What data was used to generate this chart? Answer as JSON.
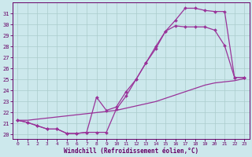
{
  "line1_x": [
    0,
    1,
    2,
    3,
    4,
    5,
    6,
    7,
    8,
    9,
    10,
    11,
    12,
    13,
    14,
    15,
    16,
    17,
    18,
    19,
    20,
    21,
    22,
    23
  ],
  "line1_y": [
    21.3,
    21.1,
    20.8,
    20.5,
    20.5,
    20.1,
    20.1,
    20.2,
    20.2,
    20.2,
    22.3,
    23.5,
    25.0,
    26.5,
    28.0,
    29.4,
    30.4,
    31.5,
    31.5,
    31.3,
    31.2,
    31.2,
    25.2,
    25.2
  ],
  "line2_x": [
    0,
    1,
    2,
    3,
    4,
    5,
    6,
    7,
    8,
    9,
    10,
    11,
    12,
    13,
    14,
    15,
    16,
    17,
    18,
    19,
    20,
    21,
    22,
    23
  ],
  "line2_y": [
    21.3,
    21.1,
    20.8,
    20.5,
    20.5,
    20.1,
    20.1,
    20.2,
    23.4,
    22.2,
    22.5,
    23.9,
    25.0,
    26.5,
    27.8,
    29.4,
    29.9,
    29.8,
    29.8,
    29.8,
    29.5,
    28.1,
    25.2,
    25.2
  ],
  "line3_x": [
    0,
    1,
    2,
    3,
    4,
    5,
    6,
    7,
    8,
    9,
    10,
    11,
    12,
    13,
    14,
    15,
    16,
    17,
    18,
    19,
    20,
    21,
    22,
    23
  ],
  "line3_y": [
    21.3,
    21.3,
    21.4,
    21.5,
    21.6,
    21.7,
    21.8,
    21.9,
    22.0,
    22.1,
    22.2,
    22.4,
    22.6,
    22.8,
    23.0,
    23.3,
    23.6,
    23.9,
    24.2,
    24.5,
    24.7,
    24.8,
    24.9,
    25.1
  ],
  "color": "#993399",
  "bg_color": "#cce8ec",
  "grid_color": "#aacccc",
  "xlabel": "Windchill (Refroidissement éolien,°C)",
  "xlim": [
    -0.5,
    23.5
  ],
  "ylim": [
    19.6,
    32.0
  ],
  "yticks": [
    20,
    21,
    22,
    23,
    24,
    25,
    26,
    27,
    28,
    29,
    30,
    31
  ],
  "xticks": [
    0,
    1,
    2,
    3,
    4,
    5,
    6,
    7,
    8,
    9,
    10,
    11,
    12,
    13,
    14,
    15,
    16,
    17,
    18,
    19,
    20,
    21,
    22,
    23
  ],
  "marker": "D",
  "markersize": 2.0,
  "linewidth": 0.9,
  "label_color": "#660066",
  "spine_color": "#660066"
}
